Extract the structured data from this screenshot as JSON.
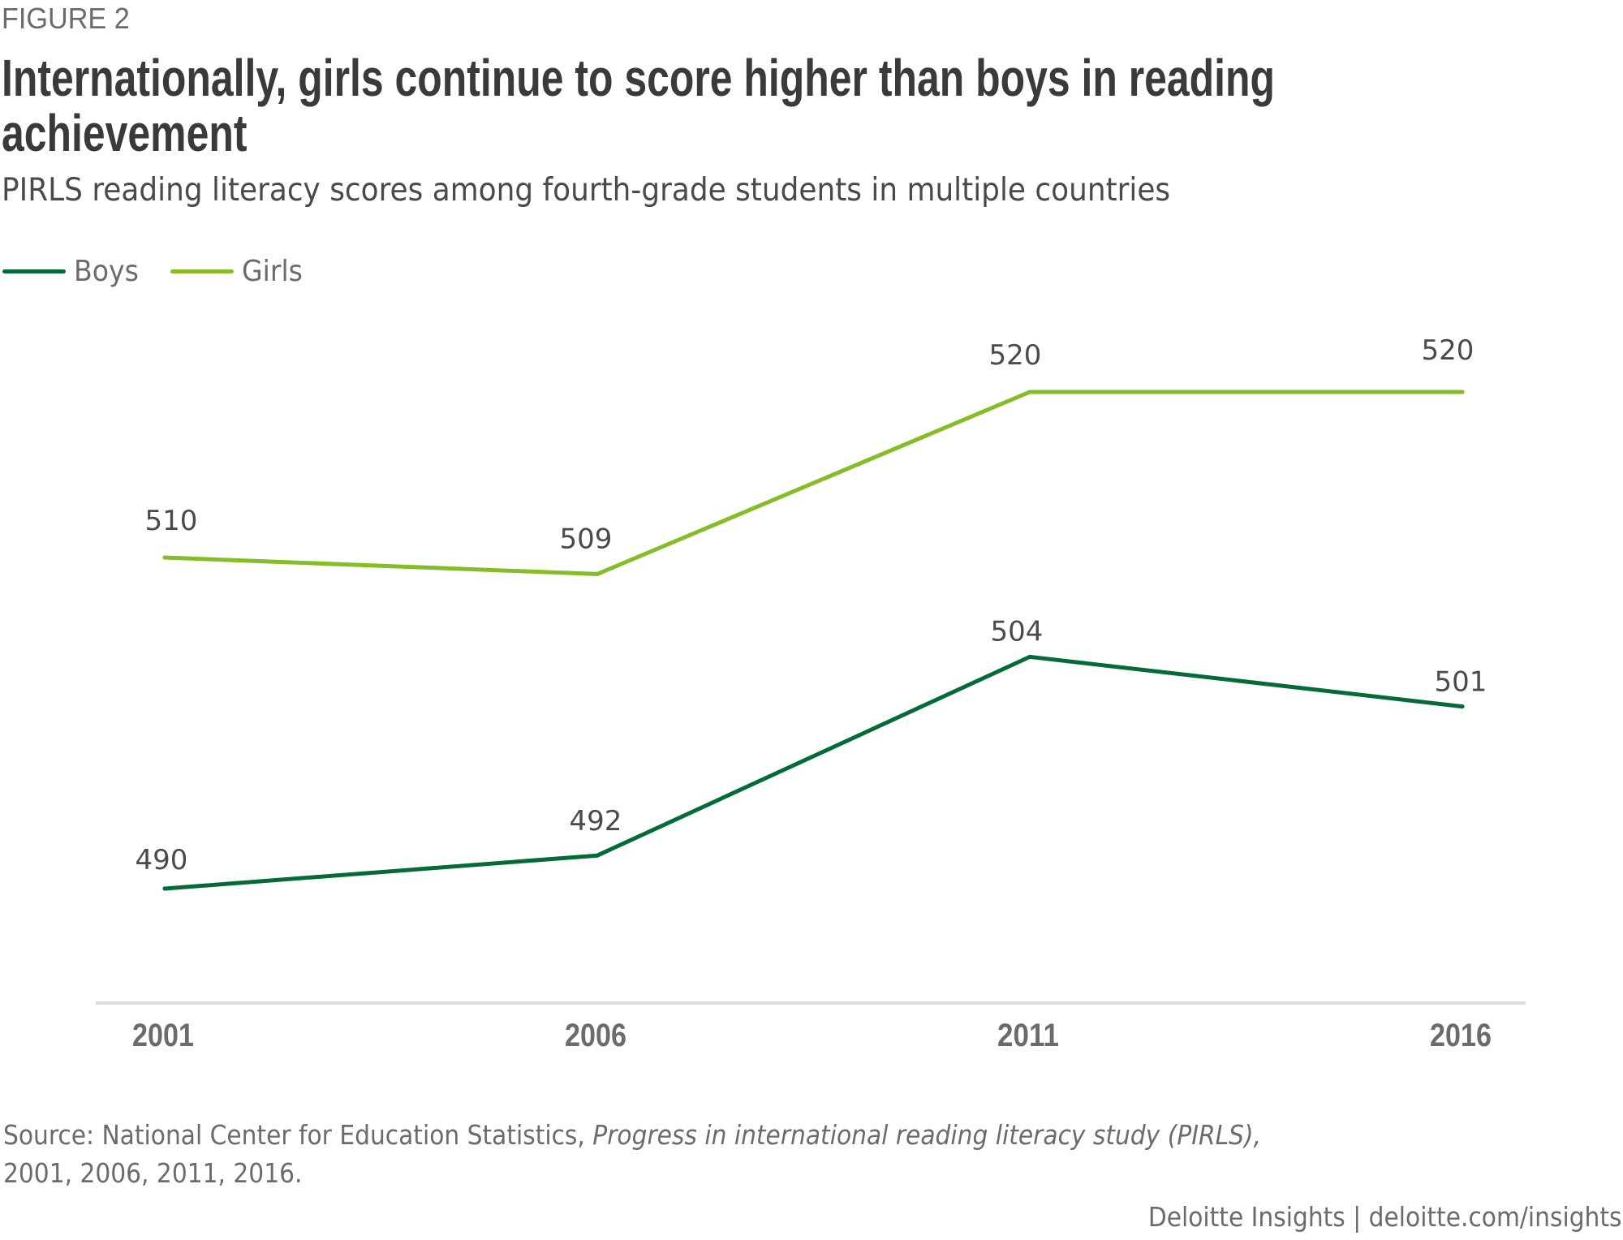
{
  "figure_label": "FIGURE 2",
  "chart_data": {
    "type": "line",
    "title": "Internationally, girls continue to score higher than boys in reading achievement",
    "subtitle": "PIRLS reading literacy scores among fourth-grade students in multiple countries",
    "xlabel": "",
    "ylabel": "",
    "categories": [
      "2001",
      "2006",
      "2011",
      "2016"
    ],
    "series": [
      {
        "name": "Boys",
        "color": "#046a38",
        "values": [
          490,
          492,
          504,
          501
        ]
      },
      {
        "name": "Girls",
        "color": "#86bc25",
        "values": [
          510,
          509,
          520,
          520
        ]
      }
    ],
    "ylim": [
      485,
      525
    ],
    "grid": false,
    "legend_position": "top-left",
    "show_data_labels": true,
    "y_axis_visible": false
  },
  "legend": {
    "items": [
      {
        "label": "Boys",
        "color": "#046a38"
      },
      {
        "label": "Girls",
        "color": "#86bc25"
      }
    ]
  },
  "source": {
    "prefix": "Source: National Center for Education Statistics, ",
    "italic": "Progress in international reading literacy study (PIRLS),",
    "suffix": "2001, 2006, 2011, 2016."
  },
  "footer": "Deloitte Insights | deloitte.com/insights",
  "colors": {
    "title": "#3a3a3a",
    "text": "#4a4a4a",
    "muted": "#6b6b6b",
    "axis": "#dcdcdc"
  }
}
